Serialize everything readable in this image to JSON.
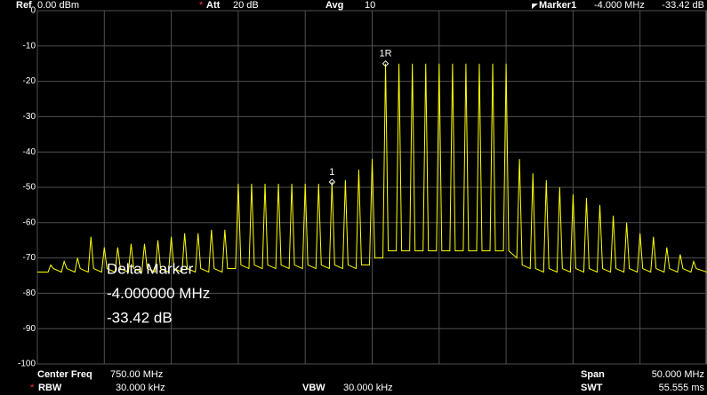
{
  "chart_data": {
    "type": "line",
    "status_top": [
      {
        "label": "Ref",
        "value": "0.00 dBm"
      },
      {
        "flag": "*",
        "label": "Att",
        "value": "20 dB"
      },
      {
        "label": "Avg",
        "value": "10"
      },
      {
        "label": "Marker1",
        "value": "-4.000 MHz",
        "delta": "-33.42 dB"
      }
    ],
    "status_bottom": [
      {
        "label": "Center Freq",
        "value": "750.00 MHz"
      },
      {
        "label": "Span",
        "value": "50.000 MHz"
      },
      {
        "flag": "*",
        "label": "RBW",
        "value": "30.000 kHz"
      },
      {
        "label": "VBW",
        "value": "30.000 kHz"
      },
      {
        "label": "SWT",
        "value": "55.555 ms"
      }
    ],
    "annotation": [
      "Delta Marker",
      "-4.000000 MHz",
      "-33.42 dB"
    ],
    "xlim": [
      725,
      775
    ],
    "xticks": [
      725,
      730,
      735,
      740,
      745,
      750,
      755,
      760,
      765,
      770,
      775
    ],
    "ylim": [
      -100,
      0
    ],
    "yticks": [
      0,
      -10,
      -20,
      -30,
      -40,
      -50,
      -60,
      -70,
      -80,
      -90,
      -100
    ],
    "grid": true,
    "series": [
      {
        "color": "#ffff00",
        "x": [
          725,
          725.8,
          726,
          726.2,
          726.8,
          727,
          727.2,
          727.8,
          728,
          728.2,
          728.8,
          729,
          729.2,
          729.8,
          730,
          730.2,
          730.8,
          731,
          731.2,
          731.8,
          732,
          732.2,
          732.8,
          733,
          733.2,
          733.8,
          734,
          734.2,
          734.8,
          735,
          735.2,
          735.8,
          736,
          736.2,
          736.8,
          737,
          737.2,
          737.8,
          738,
          738.2,
          738.8,
          739,
          739.2,
          739.8,
          740,
          740.2,
          740.8,
          741,
          741.2,
          741.8,
          742,
          742.2,
          742.8,
          743,
          743.2,
          743.8,
          744,
          744.2,
          744.8,
          745,
          745.2,
          745.8,
          746,
          746.2,
          746.8,
          747,
          747.2,
          747.8,
          748,
          748.2,
          748.8,
          749,
          749.2,
          749.8,
          750,
          750.2,
          750.8,
          751,
          751.2,
          751.8,
          752,
          752.2,
          752.8,
          753,
          753.2,
          753.8,
          754,
          754.2,
          754.8,
          755,
          755.2,
          755.8,
          756,
          756.2,
          756.8,
          757,
          757.2,
          757.8,
          758,
          758.2,
          758.8,
          759,
          759.2,
          759.8,
          760,
          760.2,
          760.8,
          761,
          761.2,
          761.8,
          762,
          762.2,
          762.8,
          763,
          763.2,
          763.8,
          764,
          764.2,
          764.8,
          765,
          765.2,
          765.8,
          766,
          766.2,
          766.8,
          767,
          767.2,
          767.8,
          768,
          768.2,
          768.8,
          769,
          769.2,
          769.8,
          770,
          770.2,
          770.8,
          771,
          771.2,
          771.8,
          772,
          772.2,
          772.8,
          773,
          773.2,
          773.8,
          774,
          774.2,
          775
        ],
        "values": [
          -74,
          -74,
          -72,
          -73,
          -74,
          -71,
          -73,
          -74,
          -70,
          -73,
          -74,
          -64,
          -73,
          -74,
          -67,
          -73,
          -74,
          -67,
          -73,
          -74,
          -66,
          -73,
          -74,
          -66,
          -73,
          -74,
          -65,
          -73,
          -74,
          -64,
          -73,
          -74,
          -63,
          -73,
          -74,
          -63,
          -73,
          -74,
          -62,
          -73,
          -74,
          -62,
          -73,
          -73,
          -49,
          -72,
          -73,
          -49,
          -72,
          -73,
          -49,
          -72,
          -73,
          -49,
          -72,
          -73,
          -49,
          -72,
          -73,
          -49,
          -72,
          -73,
          -49,
          -72,
          -73,
          -48.5,
          -72,
          -73,
          -48,
          -72,
          -73,
          -45,
          -72,
          -72,
          -42,
          -70,
          -70,
          -15,
          -68,
          -68,
          -15,
          -68,
          -68,
          -15,
          -68,
          -68,
          -15,
          -68,
          -68,
          -15,
          -68,
          -68,
          -15,
          -68,
          -68,
          -15,
          -68,
          -68,
          -15,
          -68,
          -68,
          -15,
          -68,
          -68,
          -15,
          -68,
          -70,
          -42,
          -72,
          -73,
          -46,
          -73,
          -74,
          -48,
          -73,
          -74,
          -50,
          -73,
          -74,
          -52,
          -73,
          -74,
          -53,
          -73,
          -74,
          -55,
          -73,
          -74,
          -58,
          -73,
          -74,
          -60,
          -73,
          -74,
          -63,
          -73,
          -74,
          -64,
          -73,
          -74,
          -67,
          -73,
          -74,
          -69,
          -73,
          -74,
          -71,
          -73,
          -74
        ]
      }
    ],
    "markers": [
      {
        "label": "1R",
        "x": 751,
        "y": -15
      },
      {
        "label": "1",
        "x": 747,
        "y": -48.5
      }
    ]
  }
}
